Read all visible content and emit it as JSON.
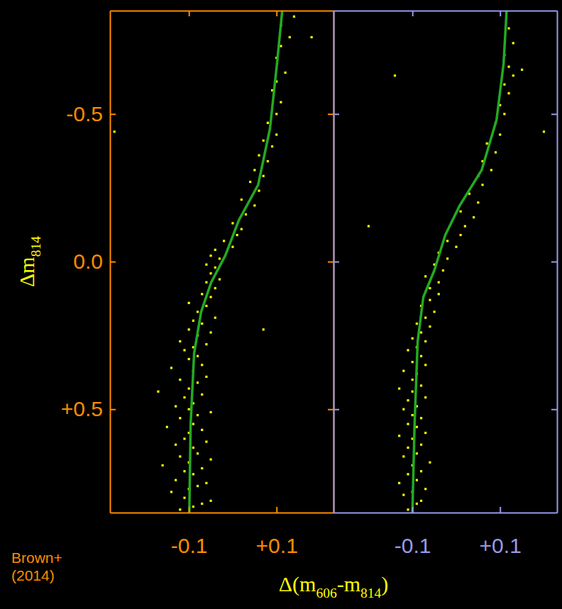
{
  "chart_data": [
    {
      "type": "scatter",
      "color": "#ff8c00",
      "ylabel": "Δm814",
      "xlabel": "Δ(m606-m814)",
      "annotations": [
        "Brown+ (2014)"
      ],
      "xlim": [
        -0.28,
        0.23
      ],
      "ylim": [
        -0.85,
        0.85
      ],
      "xticks": [
        -0.1,
        {
          "value": 0.1,
          "label": "+0.1"
        }
      ],
      "yticks": [
        -0.5,
        {
          "value": 0,
          "label": "0.0"
        },
        {
          "value": 0.5,
          "label": "+0.5"
        }
      ],
      "series": [
        {
          "type": "scatter",
          "marker": "square",
          "color": "#ffff00",
          "x": [
            -0.12,
            -0.09,
            -0.07,
            -0.11,
            -0.05,
            -0.14,
            -0.1,
            -0.08,
            -0.06,
            -0.13,
            -0.09,
            -0.11,
            -0.07,
            -0.16,
            -0.1,
            -0.05,
            -0.12,
            -0.08,
            -0.09,
            -0.13,
            -0.06,
            -0.11,
            -0.1,
            -0.07,
            -0.15,
            -0.09,
            -0.12,
            -0.08,
            -0.05,
            -0.1,
            -0.13,
            -0.09,
            -0.11,
            -0.07,
            -0.17,
            -0.1,
            -0.08,
            -0.12,
            -0.06,
            -0.09,
            -0.14,
            -0.07,
            -0.1,
            -0.08,
            -0.11,
            -0.09,
            -0.06,
            -0.12,
            -0.08,
            -0.05,
            -0.1,
            -0.07,
            -0.09,
            -0.04,
            -0.08,
            -0.06,
            -0.1,
            -0.05,
            -0.07,
            -0.04,
            -0.06,
            -0.03,
            -0.05,
            -0.04,
            -0.06,
            -0.03,
            -0.05,
            -0.04,
            0.0,
            -0.02,
            0.01,
            0.02,
            0.0,
            0.03,
            0.05,
            0.02,
            0.06,
            0.04,
            0.07,
            0.05,
            0.08,
            0.06,
            0.09,
            0.07,
            0.1,
            0.08,
            0.1,
            0.11,
            0.09,
            0.1,
            0.12,
            0.1,
            0.11,
            0.13,
            0.11,
            0.14,
            -0.27,
            0.18,
            0.07
          ],
          "values": [
            0.84,
            0.83,
            0.82,
            0.8,
            0.81,
            0.78,
            0.77,
            0.76,
            0.75,
            0.74,
            0.72,
            0.71,
            0.7,
            0.69,
            0.68,
            0.67,
            0.66,
            0.65,
            0.63,
            0.62,
            0.61,
            0.6,
            0.58,
            0.57,
            0.56,
            0.55,
            0.53,
            0.52,
            0.51,
            0.5,
            0.49,
            0.48,
            0.46,
            0.45,
            0.44,
            0.43,
            0.41,
            0.4,
            0.39,
            0.37,
            0.36,
            0.35,
            0.33,
            0.32,
            0.3,
            0.29,
            0.28,
            0.27,
            0.25,
            0.24,
            0.23,
            0.21,
            0.2,
            0.19,
            0.17,
            0.15,
            0.14,
            0.12,
            0.11,
            0.09,
            0.07,
            0.06,
            0.04,
            0.02,
            0.01,
            -0.01,
            -0.02,
            -0.04,
            -0.05,
            -0.07,
            -0.09,
            -0.11,
            -0.13,
            -0.16,
            -0.19,
            -0.21,
            -0.24,
            -0.27,
            -0.29,
            -0.31,
            -0.34,
            -0.36,
            -0.39,
            -0.41,
            -0.43,
            -0.47,
            -0.5,
            -0.54,
            -0.58,
            -0.61,
            -0.64,
            -0.69,
            -0.73,
            -0.76,
            -0.8,
            -0.83,
            -0.44,
            -0.76,
            0.23
          ]
        },
        {
          "type": "line",
          "line_style": "solid",
          "color": "#22aa22",
          "x": [
            -0.099,
            -0.096,
            -0.088,
            -0.072,
            -0.049,
            -0.017,
            0.014,
            0.058,
            0.085,
            0.101,
            0.113
          ],
          "values": [
            0.85,
            0.55,
            0.31,
            0.17,
            0.07,
            -0.02,
            -0.14,
            -0.26,
            -0.45,
            -0.67,
            -0.85
          ]
        }
      ]
    },
    {
      "type": "scatter",
      "color": "#9999ee",
      "tick_labels": "x",
      "xlim": [
        -0.28,
        0.23
      ],
      "ylim": [
        -0.85,
        0.85
      ],
      "xticks": [
        -0.1,
        {
          "value": 0.1,
          "label": "+0.1"
        }
      ],
      "yticks": [
        -0.5,
        {
          "value": 0,
          "label": "0.0"
        },
        {
          "value": 0.5,
          "label": "+0.5"
        }
      ],
      "series": [
        {
          "type": "scatter",
          "marker": "square",
          "color": "#ffff00",
          "x": [
            -0.11,
            -0.09,
            -0.08,
            -0.12,
            -0.1,
            -0.07,
            -0.13,
            -0.09,
            -0.11,
            -0.08,
            -0.1,
            -0.06,
            -0.12,
            -0.09,
            -0.11,
            -0.08,
            -0.1,
            -0.13,
            -0.07,
            -0.09,
            -0.11,
            -0.08,
            -0.1,
            -0.12,
            -0.09,
            -0.11,
            -0.07,
            -0.1,
            -0.13,
            -0.08,
            -0.1,
            -0.09,
            -0.12,
            -0.07,
            -0.1,
            -0.08,
            -0.11,
            -0.09,
            -0.07,
            -0.1,
            -0.08,
            -0.06,
            -0.09,
            -0.07,
            -0.05,
            -0.08,
            -0.06,
            -0.04,
            -0.06,
            -0.04,
            -0.07,
            -0.03,
            -0.05,
            -0.02,
            -0.04,
            0.0,
            -0.02,
            0.01,
            -0.2,
            0.02,
            0.04,
            0.01,
            0.05,
            0.03,
            0.06,
            0.05,
            0.08,
            0.06,
            0.09,
            0.07,
            0.1,
            0.09,
            0.11,
            0.1,
            0.12,
            0.11,
            0.13,
            0.12,
            0.11,
            0.13,
            0.12,
            -0.14,
            0.2,
            0.15
          ],
          "values": [
            0.84,
            0.82,
            0.81,
            0.79,
            0.78,
            0.77,
            0.75,
            0.74,
            0.72,
            0.71,
            0.69,
            0.68,
            0.66,
            0.65,
            0.63,
            0.62,
            0.6,
            0.59,
            0.58,
            0.56,
            0.55,
            0.53,
            0.52,
            0.5,
            0.49,
            0.47,
            0.46,
            0.44,
            0.43,
            0.42,
            0.4,
            0.38,
            0.37,
            0.35,
            0.34,
            0.32,
            0.3,
            0.29,
            0.27,
            0.26,
            0.24,
            0.22,
            0.21,
            0.19,
            0.17,
            0.15,
            0.13,
            0.11,
            0.09,
            0.07,
            0.05,
            0.03,
            0.01,
            -0.01,
            -0.03,
            -0.05,
            -0.07,
            -0.09,
            -0.12,
            -0.12,
            -0.15,
            -0.17,
            -0.2,
            -0.23,
            -0.26,
            -0.29,
            -0.31,
            -0.34,
            -0.37,
            -0.4,
            -0.43,
            -0.47,
            -0.5,
            -0.53,
            -0.57,
            -0.6,
            -0.63,
            -0.66,
            -0.7,
            -0.74,
            -0.79,
            -0.63,
            -0.44,
            -0.65
          ]
        },
        {
          "type": "line",
          "line_style": "solid",
          "color": "#22aa22",
          "x": [
            -0.1,
            -0.095,
            -0.088,
            -0.075,
            -0.05,
            -0.025,
            0.008,
            0.058,
            0.092,
            0.108,
            0.115
          ],
          "values": [
            0.85,
            0.55,
            0.27,
            0.12,
            0.03,
            -0.09,
            -0.19,
            -0.31,
            -0.48,
            -0.67,
            -0.85
          ]
        }
      ]
    }
  ]
}
